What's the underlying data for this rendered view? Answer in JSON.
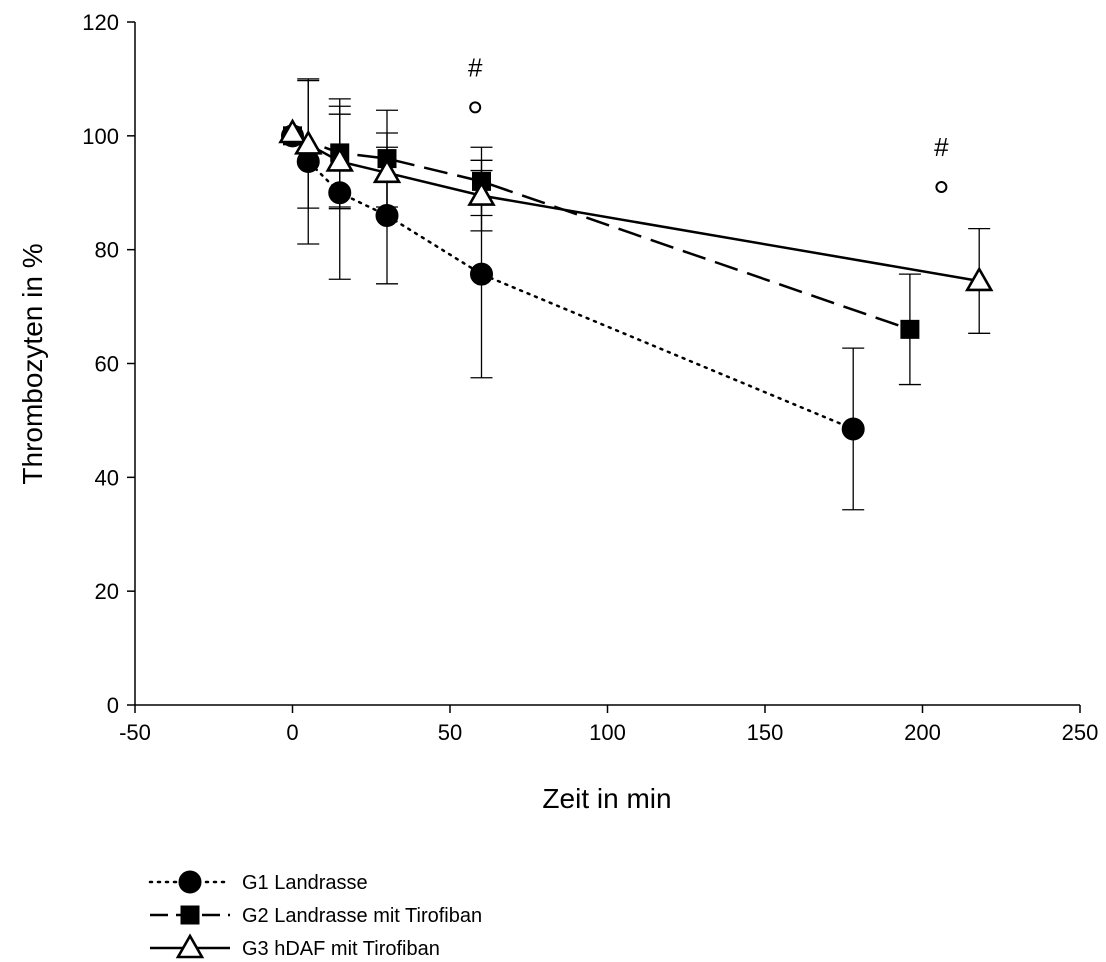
{
  "chart_data": {
    "type": "line",
    "title": "",
    "xlabel": "Zeit in min",
    "ylabel": "Thrombozyten in %",
    "xlim": [
      -50,
      250
    ],
    "ylim": [
      0,
      120
    ],
    "xticks": [
      -50,
      0,
      50,
      100,
      150,
      200,
      250
    ],
    "yticks": [
      0,
      20,
      40,
      60,
      80,
      100,
      120
    ],
    "grid": false,
    "legend_position": "bottom-left",
    "series": [
      {
        "name": "G1  Landrasse",
        "marker": "filled-circle",
        "line": "dotted",
        "x": [
          0,
          5,
          15,
          30,
          60,
          178
        ],
        "y": [
          100,
          95.5,
          90,
          86,
          75.7,
          48.5
        ],
        "err": [
          0,
          14.5,
          15.2,
          12,
          18.2,
          14.2
        ]
      },
      {
        "name": "G2  Landrasse mit Tirofiban",
        "marker": "filled-square",
        "line": "dashed",
        "x": [
          0,
          15,
          30,
          60,
          196
        ],
        "y": [
          100,
          97,
          96,
          92,
          66
        ],
        "err": [
          0,
          9.5,
          8.5,
          6,
          9.7
        ]
      },
      {
        "name": "G3  hDAF mit Tirofiban",
        "marker": "open-triangle",
        "line": "solid",
        "x": [
          0,
          5,
          15,
          30,
          60,
          218
        ],
        "y": [
          100.5,
          98.5,
          95.5,
          93.5,
          89.5,
          74.5
        ],
        "err": [
          0,
          11.2,
          8.3,
          7,
          6.2,
          9.2
        ]
      }
    ],
    "annotations": [
      {
        "symbol": "#",
        "x": 58,
        "y": 112
      },
      {
        "symbol": "°",
        "x": 58,
        "y": 105
      },
      {
        "symbol": "#",
        "x": 206,
        "y": 98
      },
      {
        "symbol": "°",
        "x": 206,
        "y": 91
      }
    ]
  }
}
